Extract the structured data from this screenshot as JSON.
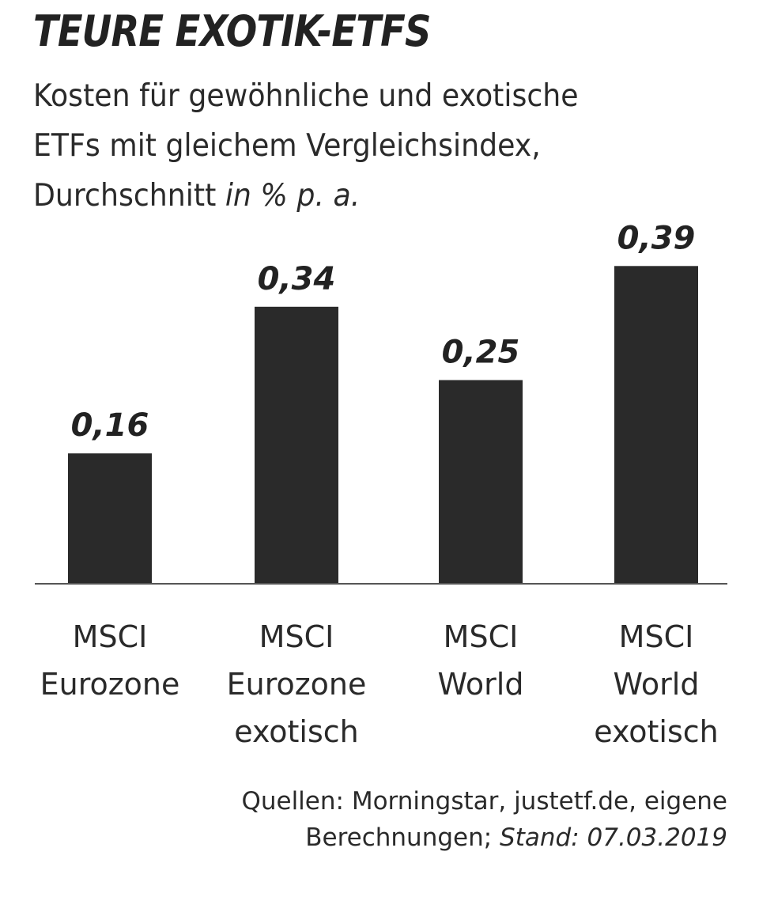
{
  "title": "TEURE EXOTIK-ETFS",
  "subtitle": {
    "line1": "Kosten für gewöhnliche und exotische",
    "line2": "ETFs mit gleichem Vergleichsindex,",
    "line3_prefix": "Durchschnitt ",
    "unit": "in % p. a."
  },
  "chart_data": {
    "type": "bar",
    "title": "TEURE EXOTIK-ETFS",
    "categories": [
      [
        "MSCI",
        "Eurozone"
      ],
      [
        "MSCI",
        "Eurozone",
        "exotisch"
      ],
      [
        "MSCI",
        "World"
      ],
      [
        "MSCI",
        "World",
        "exotisch"
      ]
    ],
    "values": [
      0.16,
      0.34,
      0.25,
      0.39
    ],
    "value_labels": [
      "0,16",
      "0,34",
      "0,25",
      "0,39"
    ],
    "ylim": [
      0,
      0.4
    ],
    "grid": false,
    "bar_color": "#2a2a2a",
    "baseline_color": "#555555"
  },
  "source": {
    "line1": "Quellen: Morningstar, justetf.de, eigene",
    "line2_prefix": "Berechnungen; ",
    "stand": "Stand: 07.03.2019"
  }
}
